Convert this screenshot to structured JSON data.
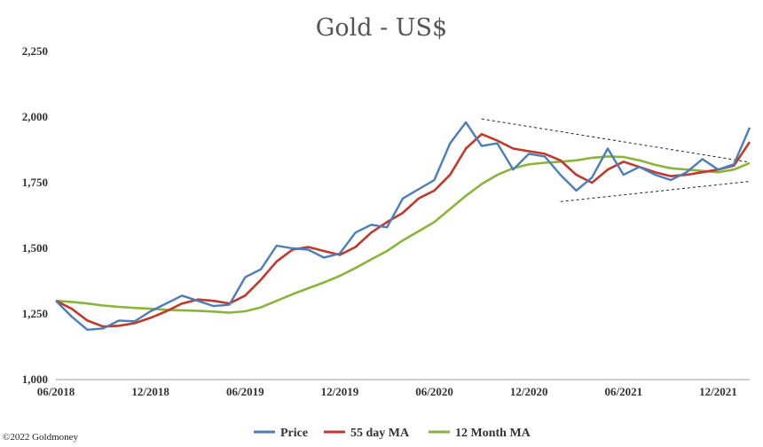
{
  "chart_data": {
    "type": "line",
    "title": "Gold - US$",
    "xlabel": "",
    "ylabel": "",
    "ylim": [
      1000,
      2250
    ],
    "y_ticks": [
      1000,
      1250,
      1500,
      1750,
      2000,
      2250
    ],
    "y_tick_labels": [
      "1,000",
      "1,250",
      "1,500",
      "1,750",
      "2,000",
      "2,250"
    ],
    "x_ticks": [
      "2018-06",
      "2018-12",
      "2019-06",
      "2019-12",
      "2020-06",
      "2020-12",
      "2021-06",
      "2021-12"
    ],
    "x_tick_labels": [
      "06/2018",
      "12/2018",
      "06/2019",
      "12/2019",
      "06/2020",
      "12/2020",
      "06/2021",
      "12/2021"
    ],
    "xlim": [
      "2018-06",
      "2022-02"
    ],
    "grid": false,
    "legend_position": "bottom",
    "series": [
      {
        "name": "Price",
        "color": "#4a7ebb",
        "points": [
          [
            "2018-06",
            1300
          ],
          [
            "2018-07",
            1240
          ],
          [
            "2018-08",
            1190
          ],
          [
            "2018-09",
            1195
          ],
          [
            "2018-10",
            1225
          ],
          [
            "2018-11",
            1222
          ],
          [
            "2018-12",
            1260
          ],
          [
            "2019-01",
            1290
          ],
          [
            "2019-02",
            1320
          ],
          [
            "2019-03",
            1300
          ],
          [
            "2019-04",
            1280
          ],
          [
            "2019-05",
            1285
          ],
          [
            "2019-06",
            1390
          ],
          [
            "2019-07",
            1420
          ],
          [
            "2019-08",
            1510
          ],
          [
            "2019-09",
            1500
          ],
          [
            "2019-10",
            1495
          ],
          [
            "2019-11",
            1465
          ],
          [
            "2019-12",
            1480
          ],
          [
            "2020-01",
            1560
          ],
          [
            "2020-02",
            1590
          ],
          [
            "2020-03",
            1580
          ],
          [
            "2020-04",
            1690
          ],
          [
            "2020-05",
            1725
          ],
          [
            "2020-06",
            1760
          ],
          [
            "2020-07",
            1900
          ],
          [
            "2020-08",
            1980
          ],
          [
            "2020-09",
            1890
          ],
          [
            "2020-10",
            1900
          ],
          [
            "2020-11",
            1800
          ],
          [
            "2020-12",
            1860
          ],
          [
            "2021-01",
            1850
          ],
          [
            "2021-02",
            1780
          ],
          [
            "2021-03",
            1720
          ],
          [
            "2021-04",
            1770
          ],
          [
            "2021-05",
            1880
          ],
          [
            "2021-06",
            1780
          ],
          [
            "2021-07",
            1810
          ],
          [
            "2021-08",
            1780
          ],
          [
            "2021-09",
            1760
          ],
          [
            "2021-10",
            1790
          ],
          [
            "2021-11",
            1840
          ],
          [
            "2021-12",
            1800
          ],
          [
            "2022-01",
            1820
          ],
          [
            "2022-02",
            1960
          ]
        ]
      },
      {
        "name": "55 day MA",
        "color": "#c0392b",
        "points": [
          [
            "2018-06",
            1300
          ],
          [
            "2018-07",
            1270
          ],
          [
            "2018-08",
            1225
          ],
          [
            "2018-09",
            1202
          ],
          [
            "2018-10",
            1205
          ],
          [
            "2018-11",
            1215
          ],
          [
            "2018-12",
            1235
          ],
          [
            "2019-01",
            1260
          ],
          [
            "2019-02",
            1290
          ],
          [
            "2019-03",
            1305
          ],
          [
            "2019-04",
            1300
          ],
          [
            "2019-05",
            1290
          ],
          [
            "2019-06",
            1320
          ],
          [
            "2019-07",
            1380
          ],
          [
            "2019-08",
            1450
          ],
          [
            "2019-09",
            1495
          ],
          [
            "2019-10",
            1505
          ],
          [
            "2019-11",
            1490
          ],
          [
            "2019-12",
            1475
          ],
          [
            "2020-01",
            1505
          ],
          [
            "2020-02",
            1560
          ],
          [
            "2020-03",
            1600
          ],
          [
            "2020-04",
            1635
          ],
          [
            "2020-05",
            1690
          ],
          [
            "2020-06",
            1720
          ],
          [
            "2020-07",
            1780
          ],
          [
            "2020-08",
            1880
          ],
          [
            "2020-09",
            1935
          ],
          [
            "2020-10",
            1910
          ],
          [
            "2020-11",
            1880
          ],
          [
            "2020-12",
            1870
          ],
          [
            "2021-01",
            1860
          ],
          [
            "2021-02",
            1835
          ],
          [
            "2021-03",
            1780
          ],
          [
            "2021-04",
            1750
          ],
          [
            "2021-05",
            1800
          ],
          [
            "2021-06",
            1830
          ],
          [
            "2021-07",
            1810
          ],
          [
            "2021-08",
            1790
          ],
          [
            "2021-09",
            1775
          ],
          [
            "2021-10",
            1780
          ],
          [
            "2021-11",
            1790
          ],
          [
            "2021-12",
            1800
          ],
          [
            "2022-01",
            1815
          ],
          [
            "2022-02",
            1905
          ]
        ]
      },
      {
        "name": "12 Month MA",
        "color": "#8ab43a",
        "points": [
          [
            "2018-06",
            1300
          ],
          [
            "2018-07",
            1296
          ],
          [
            "2018-08",
            1290
          ],
          [
            "2018-09",
            1282
          ],
          [
            "2018-10",
            1277
          ],
          [
            "2018-11",
            1273
          ],
          [
            "2018-12",
            1270
          ],
          [
            "2019-01",
            1266
          ],
          [
            "2019-02",
            1264
          ],
          [
            "2019-03",
            1262
          ],
          [
            "2019-04",
            1259
          ],
          [
            "2019-05",
            1255
          ],
          [
            "2019-06",
            1260
          ],
          [
            "2019-07",
            1275
          ],
          [
            "2019-08",
            1300
          ],
          [
            "2019-09",
            1325
          ],
          [
            "2019-10",
            1348
          ],
          [
            "2019-11",
            1370
          ],
          [
            "2019-12",
            1395
          ],
          [
            "2020-01",
            1425
          ],
          [
            "2020-02",
            1458
          ],
          [
            "2020-03",
            1490
          ],
          [
            "2020-04",
            1530
          ],
          [
            "2020-05",
            1565
          ],
          [
            "2020-06",
            1600
          ],
          [
            "2020-07",
            1650
          ],
          [
            "2020-08",
            1700
          ],
          [
            "2020-09",
            1745
          ],
          [
            "2020-10",
            1780
          ],
          [
            "2020-11",
            1805
          ],
          [
            "2020-12",
            1820
          ],
          [
            "2021-01",
            1826
          ],
          [
            "2021-02",
            1830
          ],
          [
            "2021-03",
            1835
          ],
          [
            "2021-04",
            1845
          ],
          [
            "2021-05",
            1850
          ],
          [
            "2021-06",
            1848
          ],
          [
            "2021-07",
            1835
          ],
          [
            "2021-08",
            1818
          ],
          [
            "2021-09",
            1805
          ],
          [
            "2021-10",
            1800
          ],
          [
            "2021-11",
            1795
          ],
          [
            "2021-12",
            1790
          ],
          [
            "2022-01",
            1800
          ],
          [
            "2022-02",
            1825
          ]
        ]
      }
    ],
    "trendlines": [
      {
        "style": "dashed",
        "color": "#222222",
        "points": [
          [
            "2020-09",
            1993
          ],
          [
            "2022-02",
            1828
          ]
        ]
      },
      {
        "style": "dashed",
        "color": "#222222",
        "points": [
          [
            "2021-02",
            1678
          ],
          [
            "2022-02",
            1755
          ]
        ]
      }
    ],
    "annotations": []
  },
  "copyright": "©2022 Goldmoney"
}
